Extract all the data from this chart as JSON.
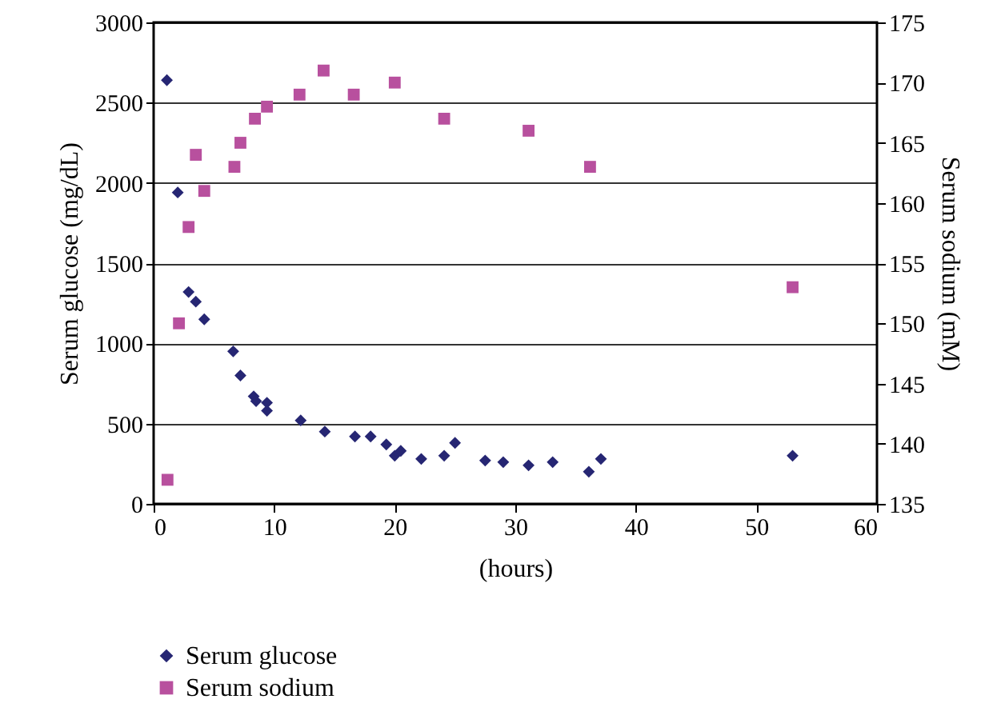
{
  "chart_data": {
    "type": "scatter",
    "xlabel": "(hours)",
    "ylabel": "Serum glucose (mg/dL)",
    "y2label": "Serum sodium (mM)",
    "xlim": [
      0,
      60
    ],
    "xticks": [
      0,
      10,
      20,
      30,
      40,
      50,
      60
    ],
    "ylim": [
      0,
      3000
    ],
    "yticks": [
      0,
      500,
      1000,
      1500,
      2000,
      2500,
      3000
    ],
    "y2lim": [
      135,
      175
    ],
    "y2ticks": [
      135,
      140,
      145,
      150,
      155,
      160,
      165,
      170,
      175
    ],
    "grid": "y",
    "legend": "bottom left",
    "series": [
      {
        "name": "Serum glucose",
        "color": "#262673",
        "marker": "diamond",
        "x": [
          1.1,
          2,
          2.9,
          3.5,
          4.2,
          6.6,
          7.2,
          8.3,
          8.5,
          9.4,
          9.4,
          12.2,
          14.2,
          16.7,
          18,
          19.3,
          20,
          20.5,
          22.2,
          24.1,
          25,
          27.5,
          29,
          31.1,
          33.1,
          36.1,
          37.1,
          53
        ],
        "values": [
          2640,
          1940,
          1320,
          1260,
          1150,
          950,
          800,
          670,
          640,
          630,
          580,
          520,
          450,
          420,
          420,
          370,
          300,
          330,
          280,
          300,
          380,
          270,
          260,
          240,
          260,
          200,
          280,
          300
        ]
      },
      {
        "name": "Serum sodium",
        "color": "#b8509e",
        "marker": "square",
        "axis": "y2",
        "x": [
          1.15,
          2.1,
          2.9,
          3.5,
          4.2,
          6.7,
          7.2,
          8.4,
          9.4,
          12.1,
          14.1,
          16.6,
          20,
          24.1,
          31.1,
          36.2,
          53
        ],
        "values": [
          137,
          150,
          158,
          164,
          161,
          163,
          165,
          167,
          168,
          169,
          171,
          169,
          170,
          167,
          166,
          163,
          153
        ]
      }
    ]
  }
}
